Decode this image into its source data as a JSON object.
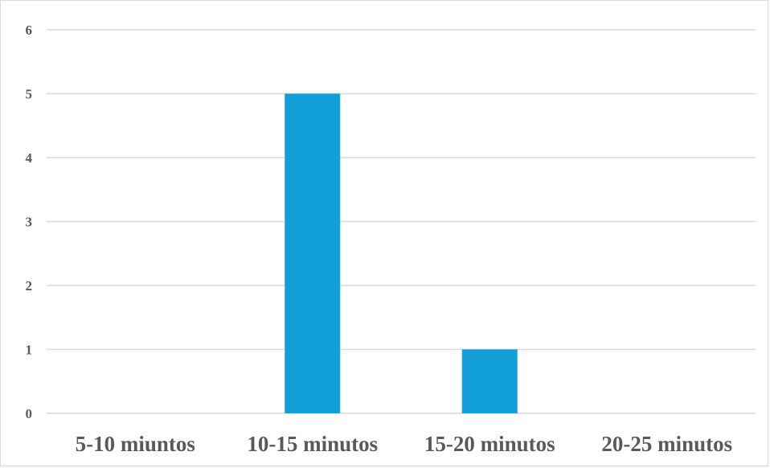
{
  "chart_data": {
    "type": "bar",
    "categories": [
      "5-10 miuntos",
      "10-15 minutos",
      "15-20 minutos",
      "20-25 minutos"
    ],
    "values": [
      0,
      5,
      1,
      0
    ],
    "ylim": [
      0,
      6
    ],
    "yticks": [
      0,
      1,
      2,
      3,
      4,
      5,
      6
    ],
    "title": "",
    "xlabel": "",
    "ylabel": "",
    "grid": true,
    "legend": "none",
    "bar_color": "#139fd8",
    "grid_color": "#d9d9d9",
    "label_color": "#595959"
  }
}
